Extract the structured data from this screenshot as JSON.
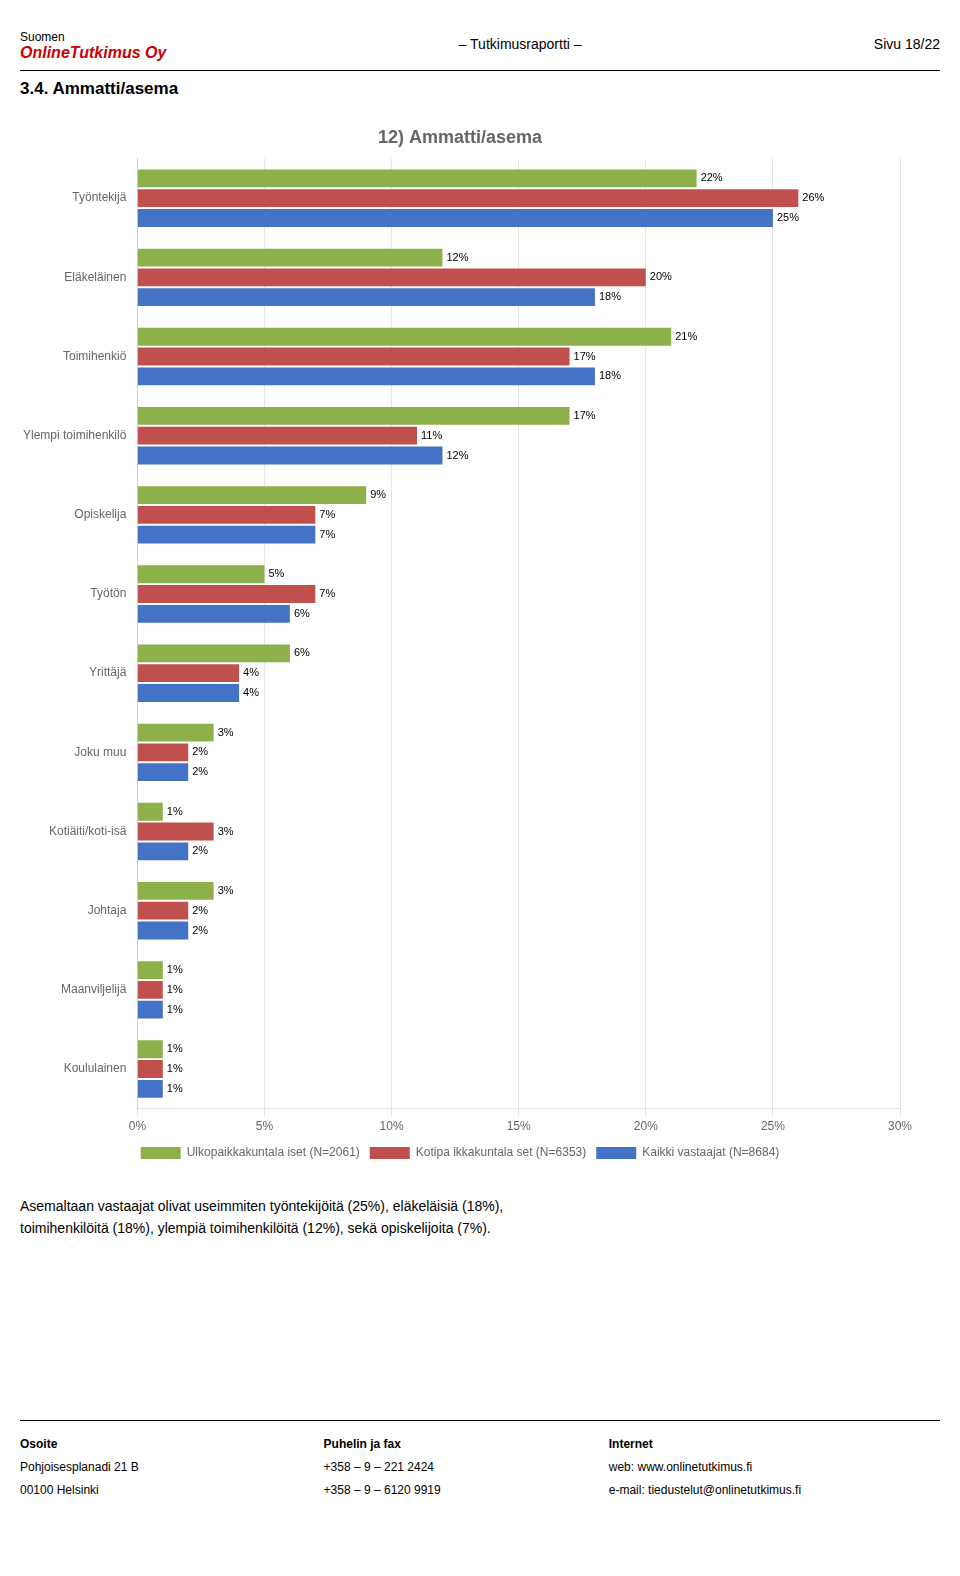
{
  "chart_data": {
    "type": "bar",
    "orientation": "horizontal",
    "title": "12) Ammatti/asema",
    "categories": [
      "Työntekijä",
      "Eläkeläinen",
      "Toimihenkiö",
      "Ylempi toimihenkilö",
      "Opiskelija",
      "Työtön",
      "Yrittäjä",
      "Joku muu",
      "Kotiäiti/koti-isä",
      "Johtaja",
      "Maanviljelijä",
      "Koululainen"
    ],
    "series": [
      {
        "name": "Ulkopaikkakuntala iset (N=2061)",
        "color": "#8DB04A",
        "values": [
          22,
          12,
          21,
          17,
          9,
          5,
          6,
          3,
          1,
          3,
          1,
          1
        ],
        "value_labels": [
          "22%",
          "12%",
          "21%",
          "17%",
          "9%",
          "5%",
          "6%",
          "3%",
          "1%",
          "3%",
          "1%",
          "1%"
        ]
      },
      {
        "name": "Kotipa ikkakuntala set (N=6353)",
        "color": "#C0504D",
        "values": [
          26,
          20,
          17,
          11,
          7,
          7,
          4,
          2,
          3,
          2,
          1,
          1
        ],
        "value_labels": [
          "26%",
          "20%",
          "17%",
          "11%",
          "7%",
          "7%",
          "4%",
          "2%",
          "3%",
          "2%",
          "1%",
          "1%"
        ]
      },
      {
        "name": "Kaikki vastaajat (N=8684)",
        "color": "#4472C4",
        "values": [
          25,
          18,
          18,
          12,
          7,
          6,
          4,
          2,
          2,
          2,
          1,
          1
        ],
        "value_labels": [
          "25%",
          "18%",
          "18%",
          "12%",
          "7%",
          "6%",
          "4%",
          "2%",
          "2%",
          "2%",
          "1%",
          "1%"
        ]
      }
    ],
    "xlim": [
      0,
      30
    ],
    "xticks": [
      {
        "value": 0,
        "label": "0%"
      },
      {
        "value": 5,
        "label": "5%"
      },
      {
        "value": 10,
        "label": "10%"
      },
      {
        "value": 15,
        "label": "15%"
      },
      {
        "value": 20,
        "label": "20%"
      },
      {
        "value": 25,
        "label": "25%"
      },
      {
        "value": 30,
        "label": "30%"
      }
    ],
    "grid": true,
    "legend": "bottom",
    "data_labels": true
  },
  "header": {
    "line1": "Suomen",
    "line2": "OnlineTutkimus Oy",
    "center": "– Tutkimusraportti –",
    "right": "Sivu 18/22"
  },
  "section_title": "3.4. Ammatti/asema",
  "footer_text": [
    "Asemaltaan vastaajat olivat useimmiten työntekijöitä (25%), eläkeläisiä (18%),",
    "toimihenkilöitä (18%), ylempiä toimihenkilöitä (12%), sekä opiskelijoita (7%)."
  ],
  "contact": [
    {
      "title": "Osoite",
      "lines": [
        "Pohjoisesplanadi 21 B",
        "00100 Helsinki"
      ]
    },
    {
      "title": "Puhelin ja fax",
      "lines": [
        "+358 – 9 – 221 2424",
        "+358 – 9 – 6120 9919"
      ]
    },
    {
      "title": "Internet",
      "lines": [
        "web: www.onlinetutkimus.fi",
        "e-mail: tiedustelut@onlinetutkimus.fi"
      ]
    }
  ]
}
